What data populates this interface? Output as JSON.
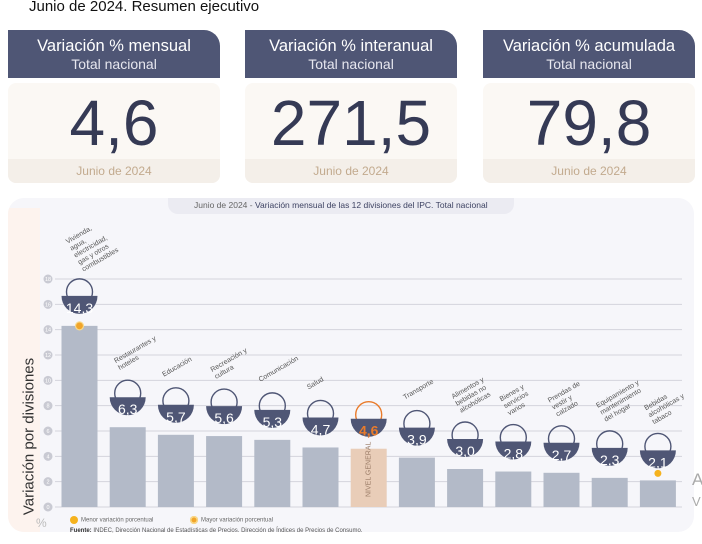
{
  "header": {
    "title": "Junio de 2024. Resumen ejecutivo"
  },
  "cards": [
    {
      "title": "Variación % mensual",
      "subtitle": "Total nacional",
      "value": "4,6",
      "period": "Junio de 2024"
    },
    {
      "title": "Variación % interanual",
      "subtitle": "Total nacional",
      "value": "271,5",
      "period": "Junio de 2024"
    },
    {
      "title": "Variación % acumulada",
      "subtitle": "Total nacional",
      "value": "79,8",
      "period": "Junio de 2024"
    }
  ],
  "chart_data": {
    "type": "bar",
    "title_prefix": "Junio de 2024",
    "title": "Variación mensual de las 12 divisiones del IPC. Total nacional",
    "ylabel": "Variación por divisiones",
    "yunit": "%",
    "ylim": [
      0,
      18
    ],
    "yticks": [
      0,
      2,
      4,
      6,
      8,
      10,
      12,
      14,
      16,
      18
    ],
    "grid": true,
    "categories": [
      "Vivienda, agua, electricidad, gas y otros combustibles",
      "Restaurantes y hoteles",
      "Educación",
      "Recreación y cultura",
      "Comunicación",
      "Salud",
      "NIVEL GENERAL",
      "Transporte",
      "Alimentos y bebidas no alcohólicas",
      "Bienes y servicios varios",
      "Prendas de vestir y calzado",
      "Equipamiento y mantenimiento del hogar",
      "Bebidas alcohólicas y tabaco"
    ],
    "values": [
      14.3,
      6.3,
      5.7,
      5.6,
      5.3,
      4.7,
      4.6,
      3.9,
      3.0,
      2.8,
      2.7,
      2.3,
      2.1
    ],
    "labels": [
      "14,3",
      "6,3",
      "5,7",
      "5,6",
      "5,3",
      "4,7",
      "4,6",
      "3,9",
      "3,0",
      "2,8",
      "2,7",
      "2,3",
      "2,1"
    ],
    "icons": [
      "house-utilities-icon",
      "restaurant-icon",
      "education-icon",
      "recreation-icon",
      "phone-icon",
      "health-icon",
      "shopping-bag-icon",
      "transport-icon",
      "food-icon",
      "services-icon",
      "clothing-icon",
      "home-equipment-icon",
      "beverages-icon"
    ],
    "highlight": "NIVEL GENERAL",
    "colors": {
      "bar": "#b3bac8",
      "highlight": "#e9cdb8",
      "badge": "#4f5675",
      "accent": "#e97b2b",
      "dot": "#f5b21e"
    },
    "legend": {
      "min": "Menor variación porcentual",
      "max": "Mayor variación porcentual"
    },
    "source_label": "Fuente:",
    "source": "INDEC, Dirección Nacional de Estadísticas de Precios. Dirección de Índices de Precios de Consumo."
  },
  "watermark": [
    "A",
    "V"
  ]
}
